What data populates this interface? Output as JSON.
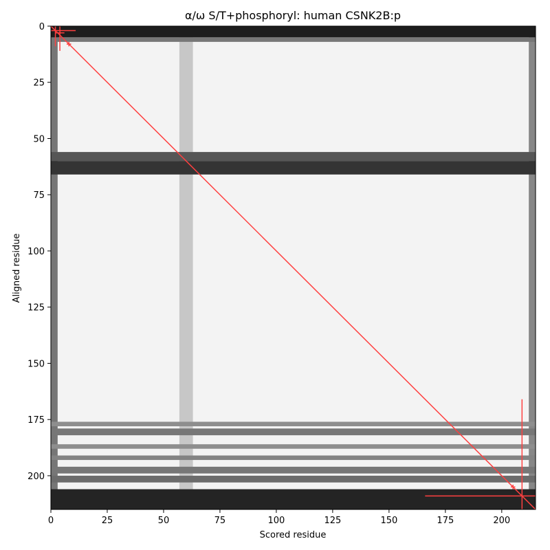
{
  "chart_data": {
    "type": "heatmap",
    "title": "α/ω S/T+phosphoryl: human CSNK2B:p",
    "xlabel": "Scored residue",
    "ylabel": "Aligned residue",
    "xlim": [
      0,
      215
    ],
    "ylim": [
      0,
      215
    ],
    "y_inverted": true,
    "x_ticks": [
      0,
      25,
      50,
      75,
      100,
      125,
      150,
      175,
      200
    ],
    "y_ticks": [
      0,
      25,
      50,
      75,
      100,
      125,
      150,
      175,
      200
    ],
    "x_tick_labels": [
      "0",
      "25",
      "50",
      "75",
      "100",
      "125",
      "150",
      "175",
      "200"
    ],
    "y_tick_labels": [
      "0",
      "25",
      "50",
      "75",
      "100",
      "125",
      "150",
      "175",
      "200"
    ],
    "colormap": "greys",
    "background_value_color": "#f3f3f3",
    "dark_rows": [
      {
        "y_start": 0,
        "y_end": 5,
        "intensity": 0.95
      },
      {
        "y_start": 5,
        "y_end": 7,
        "intensity": 0.55
      },
      {
        "y_start": 56,
        "y_end": 60,
        "intensity": 0.7
      },
      {
        "y_start": 60,
        "y_end": 66,
        "intensity": 0.85
      },
      {
        "y_start": 176,
        "y_end": 178,
        "intensity": 0.45
      },
      {
        "y_start": 179,
        "y_end": 182,
        "intensity": 0.55
      },
      {
        "y_start": 186,
        "y_end": 188,
        "intensity": 0.45
      },
      {
        "y_start": 191,
        "y_end": 193,
        "intensity": 0.5
      },
      {
        "y_start": 196,
        "y_end": 199,
        "intensity": 0.55
      },
      {
        "y_start": 200,
        "y_end": 203,
        "intensity": 0.6
      },
      {
        "y_start": 206,
        "y_end": 215,
        "intensity": 0.92
      }
    ],
    "dark_columns": [
      {
        "x_start": 0,
        "x_end": 3,
        "intensity": 0.7
      },
      {
        "x_start": 57,
        "x_end": 63,
        "intensity": 0.25
      },
      {
        "x_start": 212,
        "x_end": 215,
        "intensity": 0.6
      }
    ],
    "diagonal": {
      "x": [
        0,
        215
      ],
      "y": [
        0,
        215
      ],
      "color": "#ff4040"
    },
    "markers": [
      {
        "x": 2,
        "y": 2,
        "h_extent": [
          0,
          11
        ],
        "v_extent": [
          0,
          9
        ],
        "color": "#ff4040"
      },
      {
        "x": 4,
        "y": 3,
        "h_extent": [
          2,
          6
        ],
        "v_extent": [
          0,
          11
        ],
        "color": "#ff4040"
      },
      {
        "x": 8,
        "y": 8,
        "h_extent": [
          7,
          9
        ],
        "v_extent": [
          7,
          9
        ],
        "color": "#ff4040"
      },
      {
        "x": 205,
        "y": 205,
        "h_extent": [
          204,
          206
        ],
        "v_extent": [
          204,
          206
        ],
        "color": "#ff4040"
      },
      {
        "x": 209,
        "y": 209,
        "h_extent": [
          166,
          215
        ],
        "v_extent": [
          166,
          215
        ],
        "color": "#ff4040"
      }
    ]
  }
}
